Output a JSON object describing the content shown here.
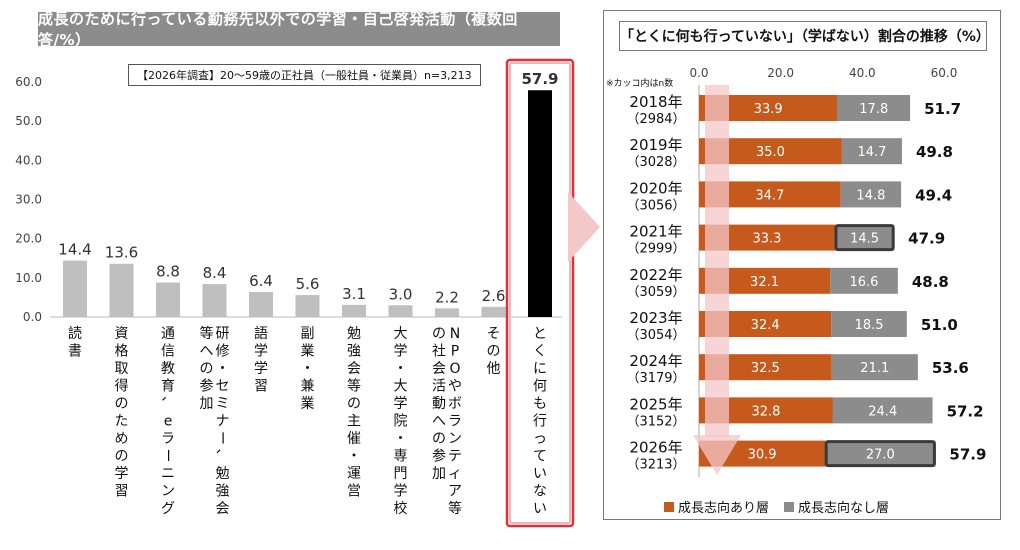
{
  "left": {
    "title": "成長のために行っている勤務先以外での学習・自己啓発活動（複数回答/%）",
    "note": "【2026年調査】20～59歳の正社員（一般社員・従業員）n=3,213"
  },
  "right": {
    "title": "「とくに何も行っていない」（学ばない）割合の推移（%）",
    "note": "※カッコ内はn数"
  },
  "chart_data": [
    {
      "type": "bar",
      "title": "成長のために行っている勤務先以外での学習・自己啓発活動（複数回答/%）",
      "categories": [
        "読書",
        "資格取得のための学習",
        "通信教育、eラーニング",
        "研修・セミナー、勉強会等への参加",
        "語学学習",
        "副業・兼業",
        "勉強会等の主催・運営",
        "大学・大学院・専門学校",
        "NPOやボランティア等の社会活動への参加",
        "その他",
        "とくに何も行っていない"
      ],
      "values": [
        14.4,
        13.6,
        8.8,
        8.4,
        6.4,
        5.6,
        3.1,
        3.0,
        2.2,
        2.6,
        57.9
      ],
      "value_labels": [
        "14.4",
        "13.6",
        "8.8",
        "8.4",
        "6.4",
        "5.6",
        "3.1",
        "3.0",
        "2.2",
        "2.6",
        "57.9"
      ],
      "yticks": [
        "0.0",
        "10.0",
        "20.0",
        "30.0",
        "40.0",
        "50.0",
        "60.0"
      ],
      "ylim": [
        0,
        60
      ],
      "highlight_index": 10,
      "colors": {
        "bar": "#bfbfbf",
        "highlight": "#000000",
        "highlight_frame": "#e0303a"
      }
    },
    {
      "type": "bar",
      "orientation": "horizontal",
      "stacked": true,
      "title": "「とくに何も行っていない」（学ばない）割合の推移（%）",
      "categories": [
        "2018年",
        "2019年",
        "2020年",
        "2021年",
        "2022年",
        "2023年",
        "2024年",
        "2025年",
        "2026年"
      ],
      "n_labels": [
        "（2984）",
        "（3028）",
        "（3056）",
        "（2999）",
        "（3059）",
        "（3054）",
        "（3179）",
        "（3152）",
        "（3213）"
      ],
      "series": [
        {
          "name": "成長志向あり層",
          "values": [
            33.9,
            35.0,
            34.7,
            33.3,
            32.1,
            32.4,
            32.5,
            32.8,
            30.9
          ],
          "labels": [
            "33.9",
            "35.0",
            "34.7",
            "33.3",
            "32.1",
            "32.4",
            "32.5",
            "32.8",
            "30.9"
          ],
          "color": "#c55a1c"
        },
        {
          "name": "成長志向なし層",
          "values": [
            17.8,
            14.7,
            14.8,
            14.5,
            16.6,
            18.5,
            21.1,
            24.4,
            27.0
          ],
          "labels": [
            "17.8",
            "14.7",
            "14.8",
            "14.5",
            "16.6",
            "18.5",
            "21.1",
            "24.4",
            "27.0"
          ],
          "color": "#8c8c8c"
        }
      ],
      "totals": [
        51.7,
        49.8,
        49.4,
        47.9,
        48.8,
        51.0,
        53.6,
        57.2,
        57.9
      ],
      "total_labels": [
        "51.7",
        "49.8",
        "49.4",
        "47.9",
        "48.8",
        "51.0",
        "53.6",
        "57.2",
        "57.9"
      ],
      "xticks": [
        "0.0",
        "20.0",
        "40.0",
        "60.0"
      ],
      "xlim": [
        0,
        60
      ],
      "highlight_cells": [
        [
          3,
          1
        ],
        [
          8,
          1
        ]
      ]
    }
  ]
}
